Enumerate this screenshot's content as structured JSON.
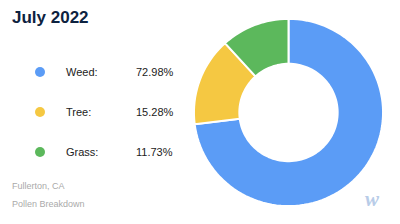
{
  "chart_data": {
    "type": "donut",
    "title": "July 2022",
    "categories": [
      "Weed:",
      "Tree:",
      "Grass:"
    ],
    "values": [
      72.98,
      15.28,
      11.73
    ],
    "value_labels": [
      "72.98%",
      "15.28%",
      "11.73%"
    ],
    "colors": [
      "#5b9cf6",
      "#f5c842",
      "#5cb85c"
    ],
    "legend": "left",
    "annotations": [
      "Fullerton, CA",
      "Pollen Breakdown",
      "w"
    ]
  }
}
